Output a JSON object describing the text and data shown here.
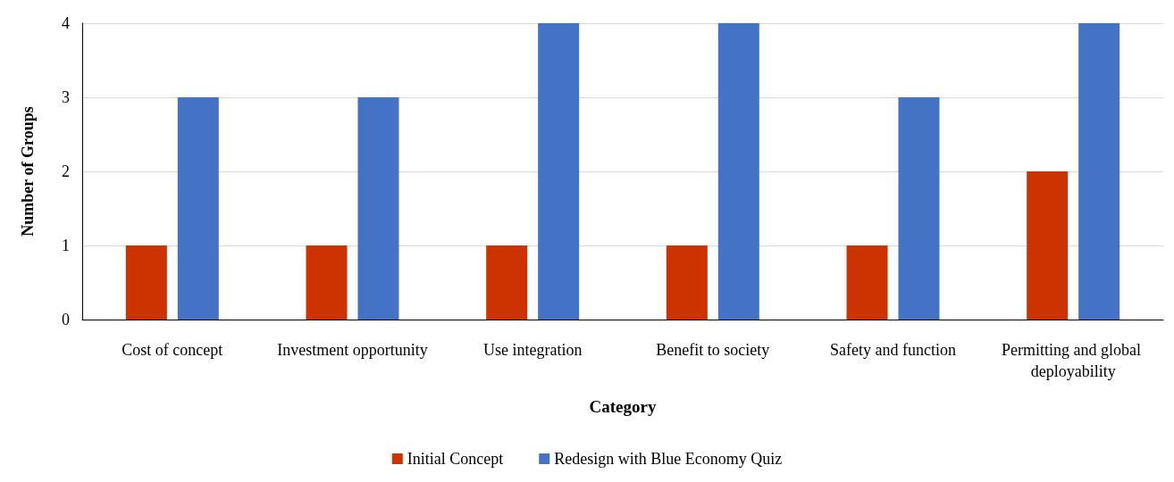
{
  "chart_data": {
    "type": "bar",
    "xlabel": "Category",
    "ylabel": "Number of Groups",
    "categories": [
      "Cost of concept",
      "Investment opportunity",
      "Use integration",
      "Benefit to society",
      "Safety and function",
      "Permitting and global deployability"
    ],
    "series": [
      {
        "name": "Initial Concept",
        "color": "#cc3300",
        "values": [
          1,
          1,
          1,
          1,
          1,
          2
        ]
      },
      {
        "name": "Redesign with Blue Economy Quiz",
        "color": "#4472c4",
        "values": [
          3,
          3,
          4,
          4,
          3,
          4
        ]
      }
    ],
    "ylim": [
      0,
      4
    ],
    "yticks": [
      0,
      1,
      2,
      3,
      4
    ],
    "grid": "y",
    "legend": "bottom"
  }
}
